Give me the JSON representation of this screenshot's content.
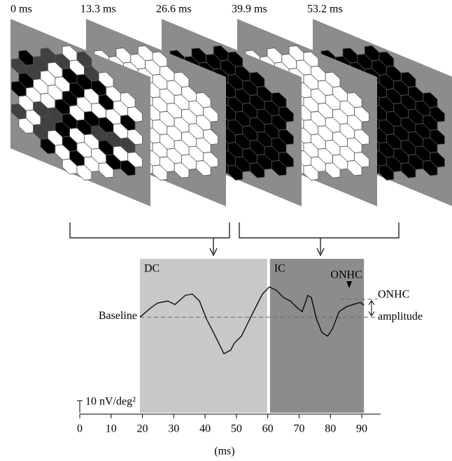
{
  "chart_data": {
    "type": "line",
    "frames": [
      {
        "label": "0 ms",
        "colors": [
          "#000000",
          "#ffffff",
          "#ffffff",
          "#404040"
        ]
      },
      {
        "label": "13.3 ms",
        "colors": [
          "#ffffff"
        ]
      },
      {
        "label": "26.6 ms",
        "colors": [
          "#000000"
        ]
      },
      {
        "label": "39.9 ms",
        "colors": [
          "#ffffff"
        ]
      },
      {
        "label": "53.2 ms",
        "colors": [
          "#000000"
        ]
      }
    ],
    "x": [
      19.2,
      22.6,
      24.8,
      28.1,
      30.4,
      33.7,
      35.9,
      38.2,
      40.4,
      42.7,
      46.0,
      48.2,
      49.3,
      51.6,
      54.9,
      58.3,
      60.5,
      62.8,
      65.0,
      67.2,
      69.5,
      71.0,
      72.8,
      73.9,
      75.5,
      77.3,
      79.1,
      80.6,
      82.8,
      85.1,
      87.3,
      89.5,
      90.7
    ],
    "values": [
      0,
      7.6,
      11.8,
      13.5,
      10.6,
      18.2,
      19.4,
      13.5,
      -1.2,
      -12.9,
      -30.6,
      -27.6,
      -21.8,
      -15.9,
      1.8,
      19.4,
      25.3,
      22.4,
      16.5,
      13.5,
      7.6,
      4.7,
      18.2,
      16.5,
      -1.2,
      -12.9,
      -15.9,
      -10,
      4.7,
      8.8,
      10.6,
      12.4,
      10
    ],
    "color": "#000000",
    "xlim": [
      0,
      96
    ],
    "xticks": [
      0,
      10,
      20,
      30,
      40,
      50,
      60,
      70,
      80,
      90
    ],
    "ylim": [
      -80,
      50
    ],
    "xlabel": "(ms)",
    "regions": [
      {
        "label": "DC",
        "start": 19.2,
        "end": 59.8,
        "color": "#c8c8c8"
      },
      {
        "label": "IC",
        "start": 60.7,
        "end": 90.7,
        "color": "#8c8c8c"
      }
    ],
    "baseline": {
      "label": "Baseline",
      "value": 0
    },
    "onhc_level": {
      "label": "ONHC",
      "value": 15
    },
    "amplitude_label": "amplitude",
    "peak_marker": {
      "label": "ONHC",
      "x": 86
    },
    "scale_bar": {
      "value": 10,
      "label": "10 nV/deg²"
    }
  }
}
